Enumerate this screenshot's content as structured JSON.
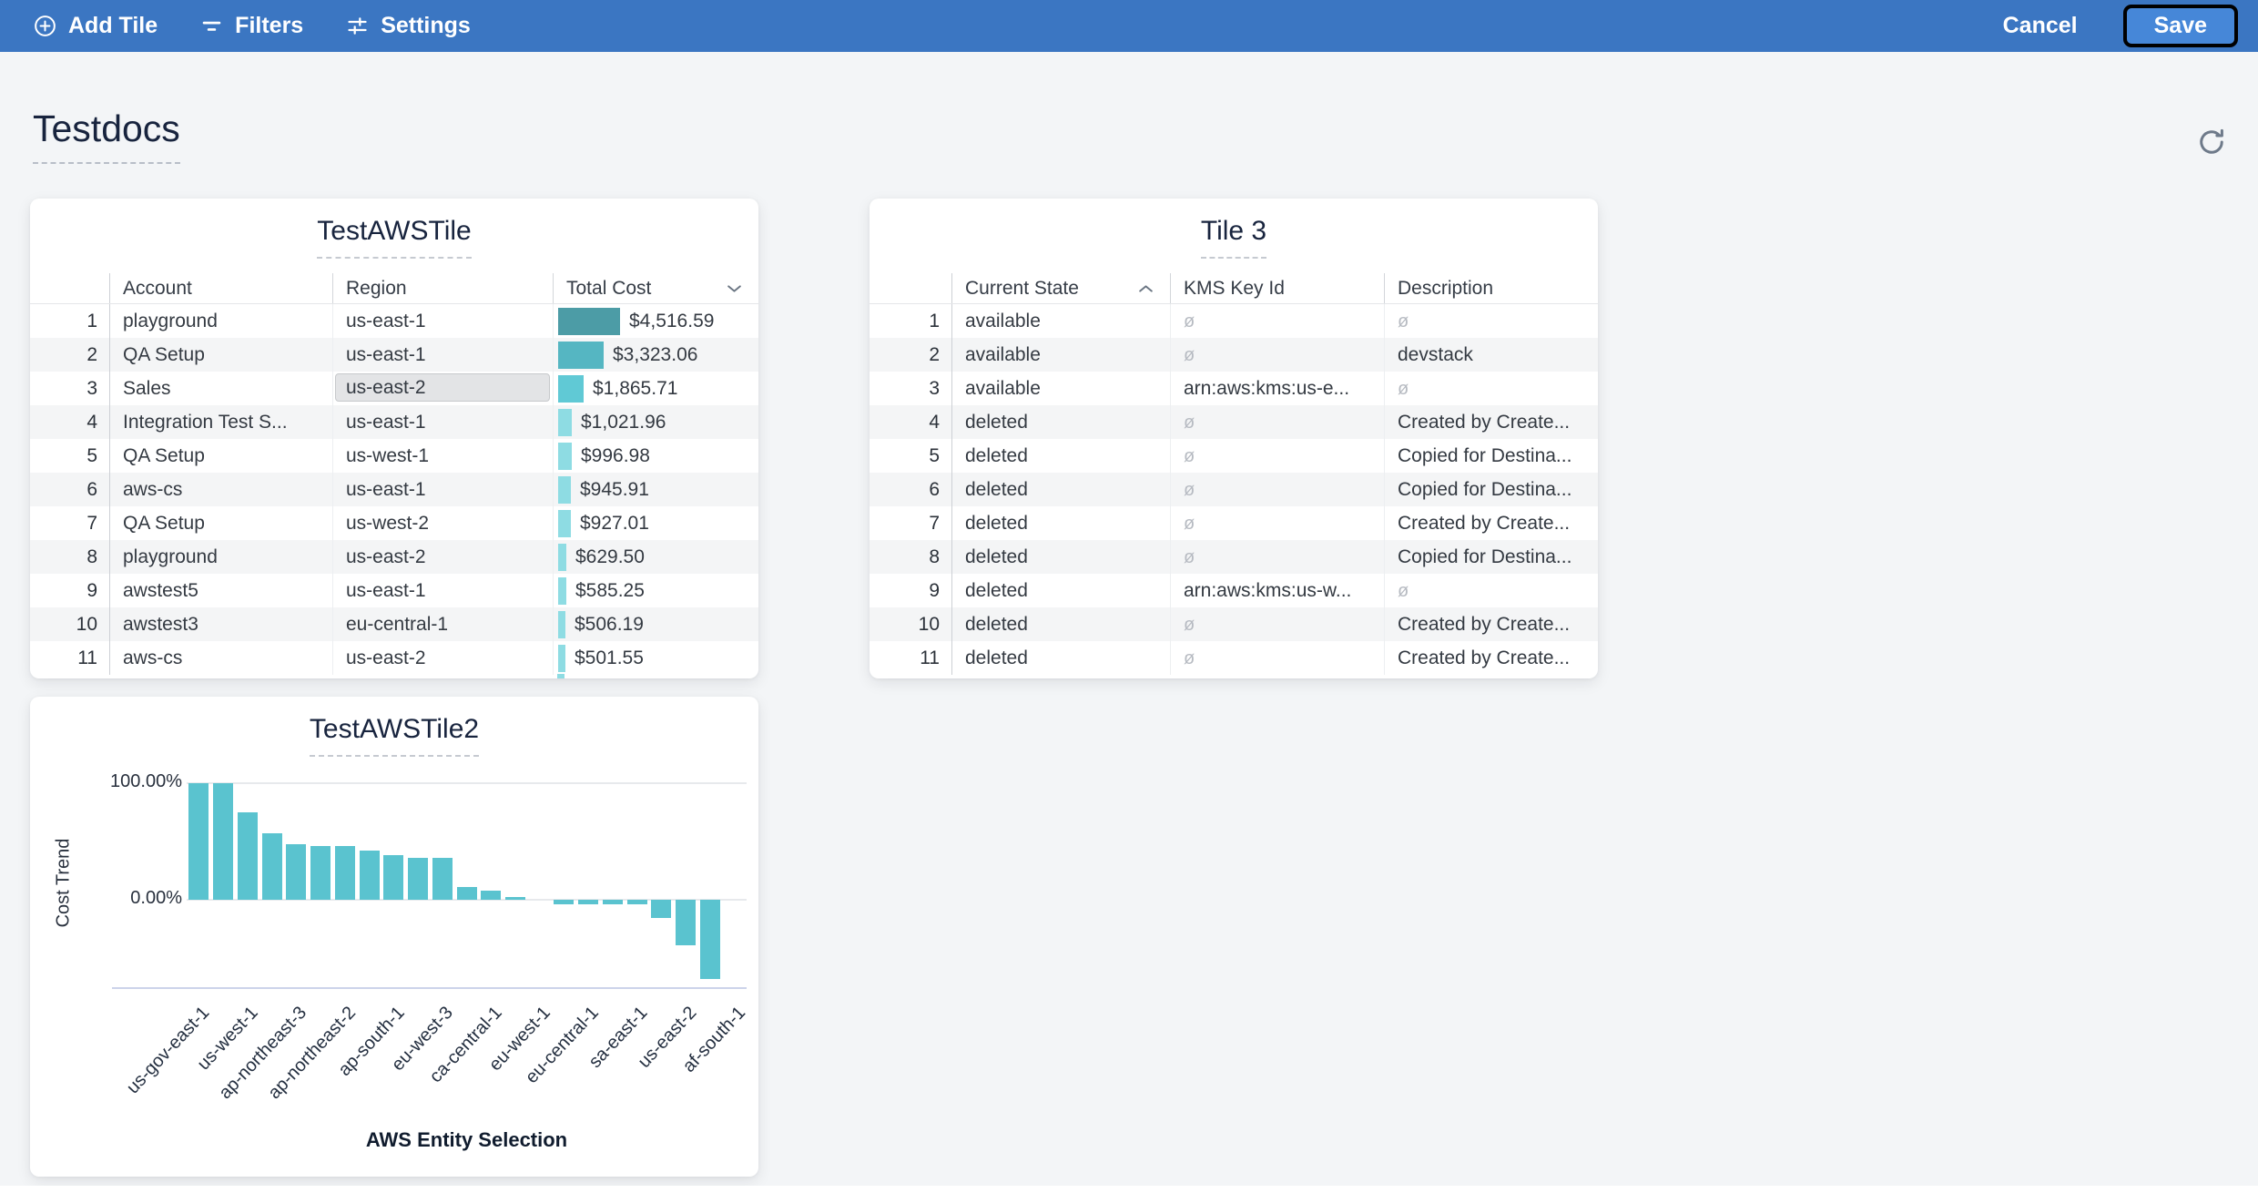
{
  "toolbar": {
    "background": "#3b76c2",
    "items": [
      {
        "label": "Add Tile",
        "icon": "plus-circle-icon"
      },
      {
        "label": "Filters",
        "icon": "filter-icon"
      },
      {
        "label": "Settings",
        "icon": "sliders-icon"
      }
    ],
    "cancel_label": "Cancel",
    "save_label": "Save",
    "save_highlight_border": "#000000"
  },
  "page": {
    "title": "Testdocs",
    "background": "#f3f5f7"
  },
  "null_symbol": "ø",
  "tables": [
    {
      "title": "TestAWSTile",
      "columns": [
        "Account",
        "Region",
        "Total Cost"
      ],
      "fields": [
        "account",
        "region",
        "total_cost"
      ],
      "sort": {
        "column": "Total Cost",
        "direction": "desc"
      },
      "selected": {
        "row_num": 3,
        "field": "region"
      },
      "max_value": 4516.59,
      "rows": [
        {
          "num": "1",
          "account": "playground",
          "region": "us-east-1",
          "total_cost": "$4,516.59",
          "value": 4516.59,
          "bar_color": "#4c9ca6"
        },
        {
          "num": "2",
          "account": "QA Setup",
          "region": "us-east-1",
          "total_cost": "$3,323.06",
          "value": 3323.06,
          "bar_color": "#55b6c2"
        },
        {
          "num": "3",
          "account": "Sales",
          "region": "us-east-2",
          "total_cost": "$1,865.71",
          "value": 1865.71,
          "bar_color": "#60c9d5"
        },
        {
          "num": "4",
          "account": "Integration Test S...",
          "region": "us-east-1",
          "total_cost": "$1,021.96",
          "value": 1021.96,
          "bar_color": "#8edce3"
        },
        {
          "num": "5",
          "account": "QA Setup",
          "region": "us-west-1",
          "total_cost": "$996.98",
          "value": 996.98,
          "bar_color": "#8edce3"
        },
        {
          "num": "6",
          "account": "aws-cs",
          "region": "us-east-1",
          "total_cost": "$945.91",
          "value": 945.91,
          "bar_color": "#8edce3"
        },
        {
          "num": "7",
          "account": "QA Setup",
          "region": "us-west-2",
          "total_cost": "$927.01",
          "value": 927.01,
          "bar_color": "#8edce3"
        },
        {
          "num": "8",
          "account": "playground",
          "region": "us-east-2",
          "total_cost": "$629.50",
          "value": 629.5,
          "bar_color": "#8edce3"
        },
        {
          "num": "9",
          "account": "awstest5",
          "region": "us-east-1",
          "total_cost": "$585.25",
          "value": 585.25,
          "bar_color": "#8edce3"
        },
        {
          "num": "10",
          "account": "awstest3",
          "region": "eu-central-1",
          "total_cost": "$506.19",
          "value": 506.19,
          "bar_color": "#8edce3"
        },
        {
          "num": "11",
          "account": "aws-cs",
          "region": "us-east-2",
          "total_cost": "$501.55",
          "value": 501.55,
          "bar_color": "#8edce3"
        }
      ]
    },
    {
      "title": "Tile 3",
      "columns": [
        "Current State",
        "KMS Key Id",
        "Description"
      ],
      "fields": [
        "current_state",
        "kms_key_id",
        "description"
      ],
      "sort": {
        "column": "Current State",
        "direction": "asc"
      },
      "rows": [
        {
          "num": "1",
          "current_state": "available",
          "kms_key_id": null,
          "description": null
        },
        {
          "num": "2",
          "current_state": "available",
          "kms_key_id": null,
          "description": "devstack"
        },
        {
          "num": "3",
          "current_state": "available",
          "kms_key_id": "arn:aws:kms:us-e...",
          "description": null
        },
        {
          "num": "4",
          "current_state": "deleted",
          "kms_key_id": null,
          "description": "Created by Create..."
        },
        {
          "num": "5",
          "current_state": "deleted",
          "kms_key_id": null,
          "description": "Copied for Destina..."
        },
        {
          "num": "6",
          "current_state": "deleted",
          "kms_key_id": null,
          "description": "Copied for Destina..."
        },
        {
          "num": "7",
          "current_state": "deleted",
          "kms_key_id": null,
          "description": "Created by Create..."
        },
        {
          "num": "8",
          "current_state": "deleted",
          "kms_key_id": null,
          "description": "Copied for Destina..."
        },
        {
          "num": "9",
          "current_state": "deleted",
          "kms_key_id": "arn:aws:kms:us-w...",
          "description": null
        },
        {
          "num": "10",
          "current_state": "deleted",
          "kms_key_id": null,
          "description": "Created by Create..."
        },
        {
          "num": "11",
          "current_state": "deleted",
          "kms_key_id": null,
          "description": "Created by Create..."
        }
      ]
    }
  ],
  "chart_data": {
    "type": "bar",
    "title": "TestAWSTile2",
    "xlabel": "AWS Entity Selection",
    "ylabel": "Cost Trend",
    "ytick_labels": [
      "100.00%",
      "0.00%"
    ],
    "ylim": [
      -76,
      100
    ],
    "grid": "horizontal",
    "bar_color": "#5ac3cf",
    "values": [
      100,
      100,
      75,
      57,
      48,
      46,
      46,
      42,
      38,
      36,
      36,
      11,
      8,
      2,
      0,
      -4,
      -4,
      -4,
      -4,
      -16,
      -39,
      -68,
      0
    ],
    "xtick_labels": [
      "us-gov-east-1",
      "us-west-1",
      "ap-northeast-3",
      "ap-northeast-2",
      "ap-south-1",
      "eu-west-3",
      "ca-central-1",
      "eu-west-1",
      "eu-central-1",
      "sa-east-1",
      "us-east-2",
      "af-south-1"
    ],
    "xtick_every": 2
  }
}
